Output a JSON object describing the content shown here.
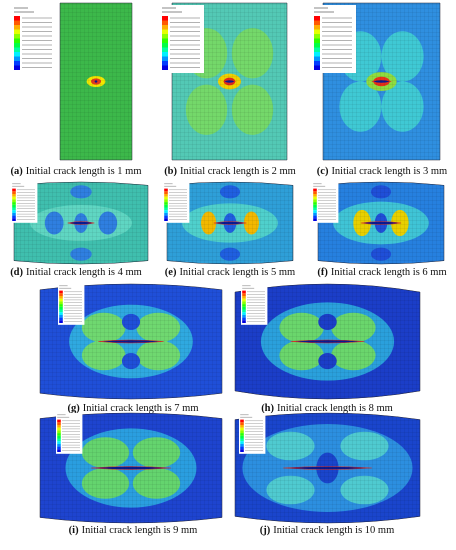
{
  "figure": {
    "panels": [
      {
        "label": "(a)",
        "caption": "Initial crack length is 1 mm"
      },
      {
        "label": "(b)",
        "caption": "Initial crack length is 2 mm"
      },
      {
        "label": "(c)",
        "caption": "Initial crack length is 3 mm"
      },
      {
        "label": "(d)",
        "caption": "Initial crack length is 4 mm"
      },
      {
        "label": "(e)",
        "caption": "Initial crack length is 5 mm"
      },
      {
        "label": "(f)",
        "caption": "Initial crack length is 6 mm"
      },
      {
        "label": "(g)",
        "caption": "Initial crack length is 7 mm"
      },
      {
        "label": "(h)",
        "caption": "Initial crack length is 8 mm"
      },
      {
        "label": "(i)",
        "caption": "Initial crack length is 9 mm"
      },
      {
        "label": "(j)",
        "caption": "Initial crack length is 10 mm"
      }
    ]
  }
}
